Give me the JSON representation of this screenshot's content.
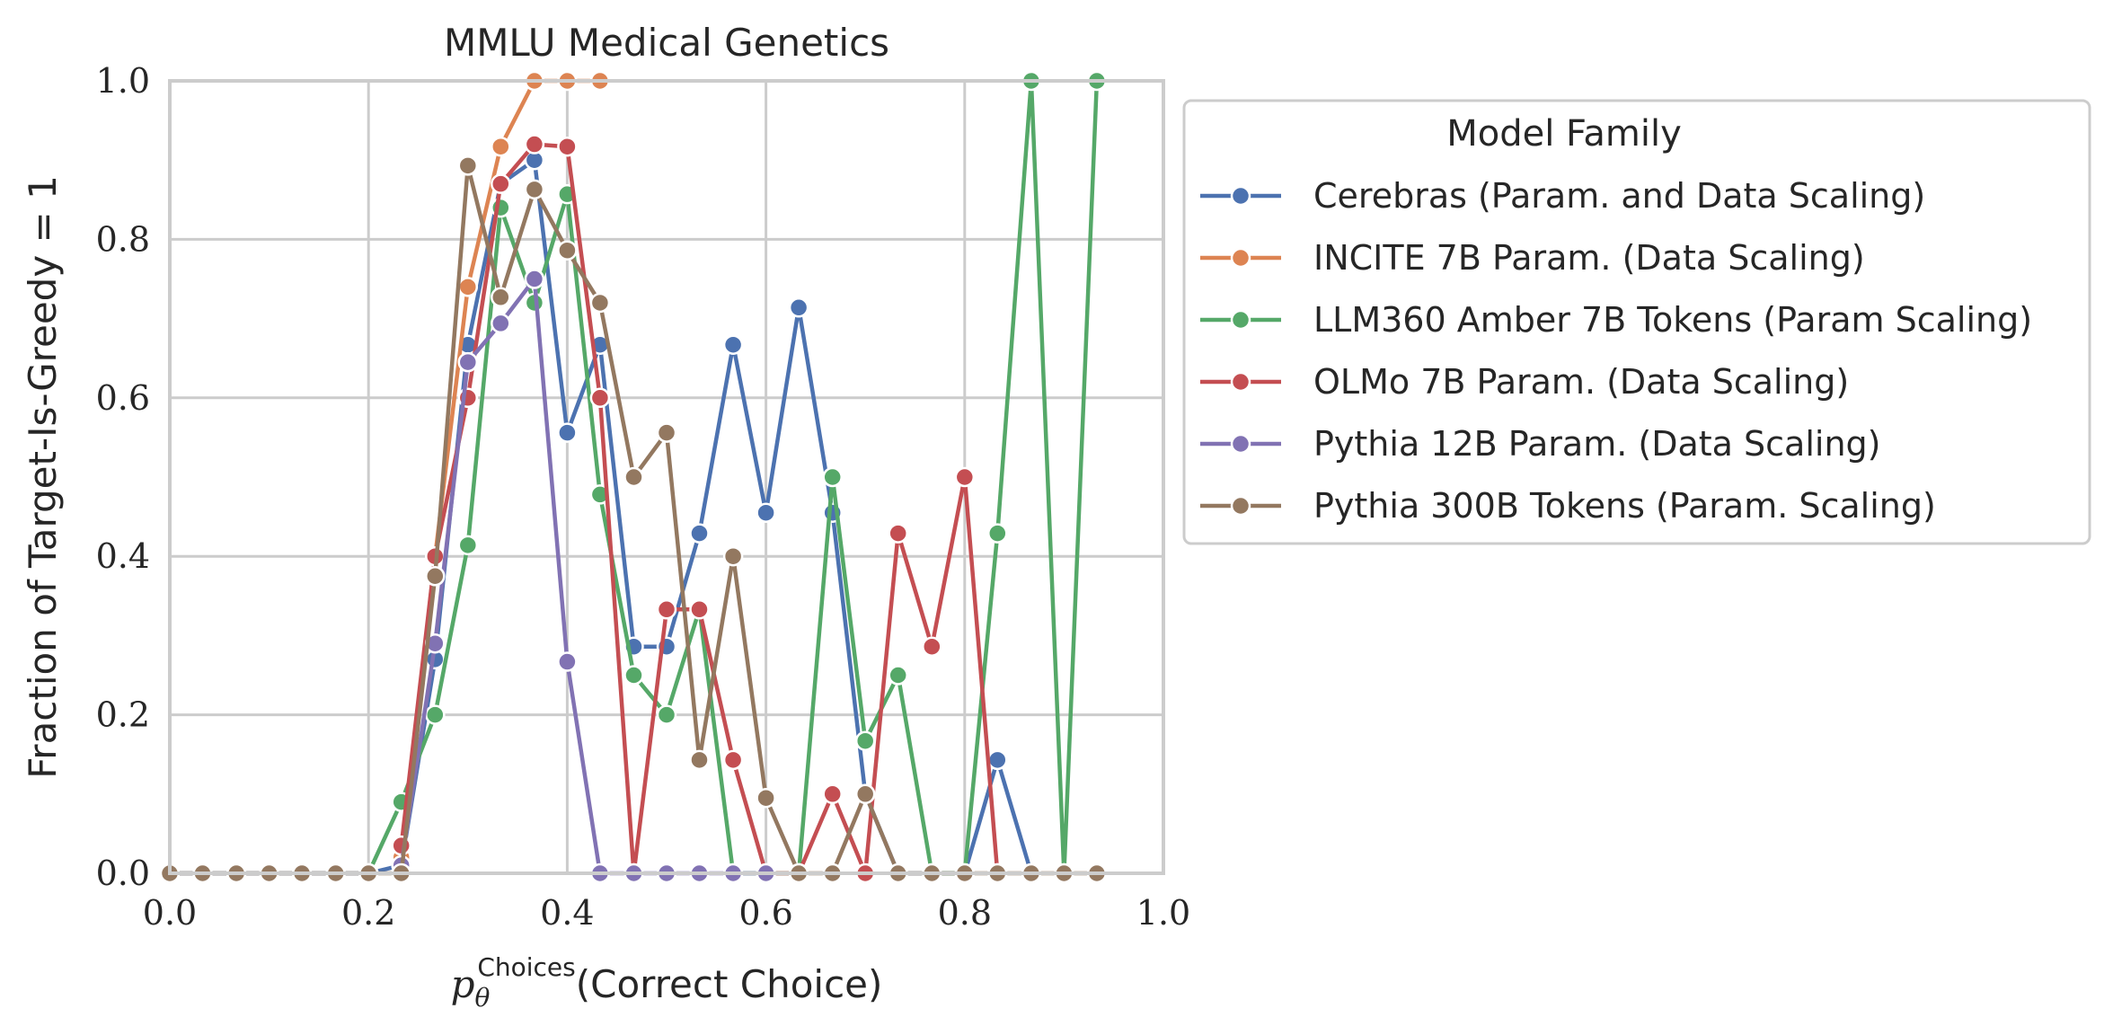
{
  "chart_data": {
    "type": "line",
    "title": "MMLU Medical Genetics",
    "xlabel_math": "p",
    "xlabel_sub": "θ",
    "xlabel_sup": "Choices",
    "xlabel_text": "(Correct Choice)",
    "ylabel": "Fraction of Target-Is-Greedy = 1",
    "xlim": [
      0,
      1
    ],
    "ylim": [
      0,
      1
    ],
    "xticks": [
      "0.0",
      "0.2",
      "0.4",
      "0.6",
      "0.8",
      "1.0"
    ],
    "yticks": [
      "0.0",
      "0.2",
      "0.4",
      "0.6",
      "0.8",
      "1.0"
    ],
    "grid": true,
    "legend_title": "Model Family",
    "legend_placement": "outside upper right",
    "series": [
      {
        "name": "Cerebras (Param. and Data Scaling)",
        "color": "#4c72b0",
        "points": [
          [
            0.0,
            0
          ],
          [
            0.033,
            0
          ],
          [
            0.067,
            0
          ],
          [
            0.1,
            0
          ],
          [
            0.133,
            0
          ],
          [
            0.167,
            0
          ],
          [
            0.2,
            0
          ],
          [
            0.233,
            0.01
          ],
          [
            0.267,
            0.27
          ],
          [
            0.3,
            0.667
          ],
          [
            0.333,
            0.87
          ],
          [
            0.367,
            0.9
          ],
          [
            0.4,
            0.556
          ],
          [
            0.433,
            0.667
          ],
          [
            0.467,
            0.286
          ],
          [
            0.5,
            0.286
          ],
          [
            0.533,
            0.429
          ],
          [
            0.567,
            0.667
          ],
          [
            0.6,
            0.455
          ],
          [
            0.633,
            0.714
          ],
          [
            0.667,
            0.455
          ],
          [
            0.7,
            0.1
          ],
          [
            0.733,
            0
          ],
          [
            0.767,
            0
          ],
          [
            0.8,
            0
          ],
          [
            0.833,
            0.143
          ],
          [
            0.867,
            0
          ]
        ]
      },
      {
        "name": "INCITE 7B Param. (Data Scaling)",
        "color": "#dd8452",
        "points": [
          [
            0.233,
            0.02
          ],
          [
            0.267,
            0.4
          ],
          [
            0.3,
            0.74
          ],
          [
            0.333,
            0.917
          ],
          [
            0.367,
            1.0
          ],
          [
            0.4,
            1.0
          ],
          [
            0.433,
            1.0
          ]
        ]
      },
      {
        "name": "LLM360 Amber 7B Tokens (Param Scaling)",
        "color": "#55a868",
        "points": [
          [
            0.2,
            0
          ],
          [
            0.233,
            0.09
          ],
          [
            0.267,
            0.2
          ],
          [
            0.3,
            0.414
          ],
          [
            0.333,
            0.84
          ],
          [
            0.367,
            0.72
          ],
          [
            0.4,
            0.857
          ],
          [
            0.433,
            0.478
          ],
          [
            0.467,
            0.25
          ],
          [
            0.5,
            0.2
          ],
          [
            0.533,
            0.333
          ],
          [
            0.567,
            0
          ],
          [
            0.6,
            0
          ],
          [
            0.633,
            0
          ],
          [
            0.667,
            0.5
          ],
          [
            0.7,
            0.167
          ],
          [
            0.733,
            0.25
          ],
          [
            0.767,
            0
          ],
          [
            0.8,
            0
          ],
          [
            0.833,
            0.429
          ],
          [
            0.867,
            1.0
          ],
          [
            0.9,
            0
          ],
          [
            0.933,
            1.0
          ]
        ]
      },
      {
        "name": "OLMo 7B Param. (Data Scaling)",
        "color": "#c44e52",
        "points": [
          [
            0.233,
            0.035
          ],
          [
            0.267,
            0.4
          ],
          [
            0.3,
            0.6
          ],
          [
            0.333,
            0.87
          ],
          [
            0.367,
            0.92
          ],
          [
            0.4,
            0.917
          ],
          [
            0.433,
            0.6
          ],
          [
            0.467,
            0
          ],
          [
            0.5,
            0.333
          ],
          [
            0.533,
            0.333
          ],
          [
            0.567,
            0.143
          ],
          [
            0.6,
            0
          ],
          [
            0.633,
            0
          ],
          [
            0.667,
            0.1
          ],
          [
            0.7,
            0
          ],
          [
            0.733,
            0.429
          ],
          [
            0.767,
            0.286
          ],
          [
            0.8,
            0.5
          ],
          [
            0.833,
            0
          ]
        ]
      },
      {
        "name": "Pythia 12B Param. (Data Scaling)",
        "color": "#8172b3",
        "points": [
          [
            0.233,
            0.01
          ],
          [
            0.267,
            0.29
          ],
          [
            0.3,
            0.645
          ],
          [
            0.333,
            0.694
          ],
          [
            0.367,
            0.75
          ],
          [
            0.4,
            0.267
          ],
          [
            0.433,
            0
          ],
          [
            0.467,
            0
          ],
          [
            0.5,
            0
          ],
          [
            0.533,
            0
          ],
          [
            0.567,
            0
          ],
          [
            0.6,
            0
          ]
        ]
      },
      {
        "name": "Pythia 300B Tokens (Param. Scaling)",
        "color": "#937860",
        "points": [
          [
            0.0,
            0
          ],
          [
            0.033,
            0
          ],
          [
            0.067,
            0
          ],
          [
            0.1,
            0
          ],
          [
            0.133,
            0
          ],
          [
            0.167,
            0
          ],
          [
            0.2,
            0
          ],
          [
            0.233,
            0
          ],
          [
            0.267,
            0.375
          ],
          [
            0.3,
            0.893
          ],
          [
            0.333,
            0.727
          ],
          [
            0.367,
            0.863
          ],
          [
            0.4,
            0.786
          ],
          [
            0.433,
            0.72
          ],
          [
            0.467,
            0.5
          ],
          [
            0.5,
            0.556
          ],
          [
            0.533,
            0.143
          ],
          [
            0.567,
            0.4
          ],
          [
            0.6,
            0.095
          ],
          [
            0.633,
            0
          ],
          [
            0.667,
            0
          ],
          [
            0.7,
            0.1
          ],
          [
            0.733,
            0
          ],
          [
            0.767,
            0
          ],
          [
            0.8,
            0
          ],
          [
            0.833,
            0
          ],
          [
            0.867,
            0
          ],
          [
            0.9,
            0
          ],
          [
            0.933,
            0
          ]
        ]
      }
    ]
  }
}
